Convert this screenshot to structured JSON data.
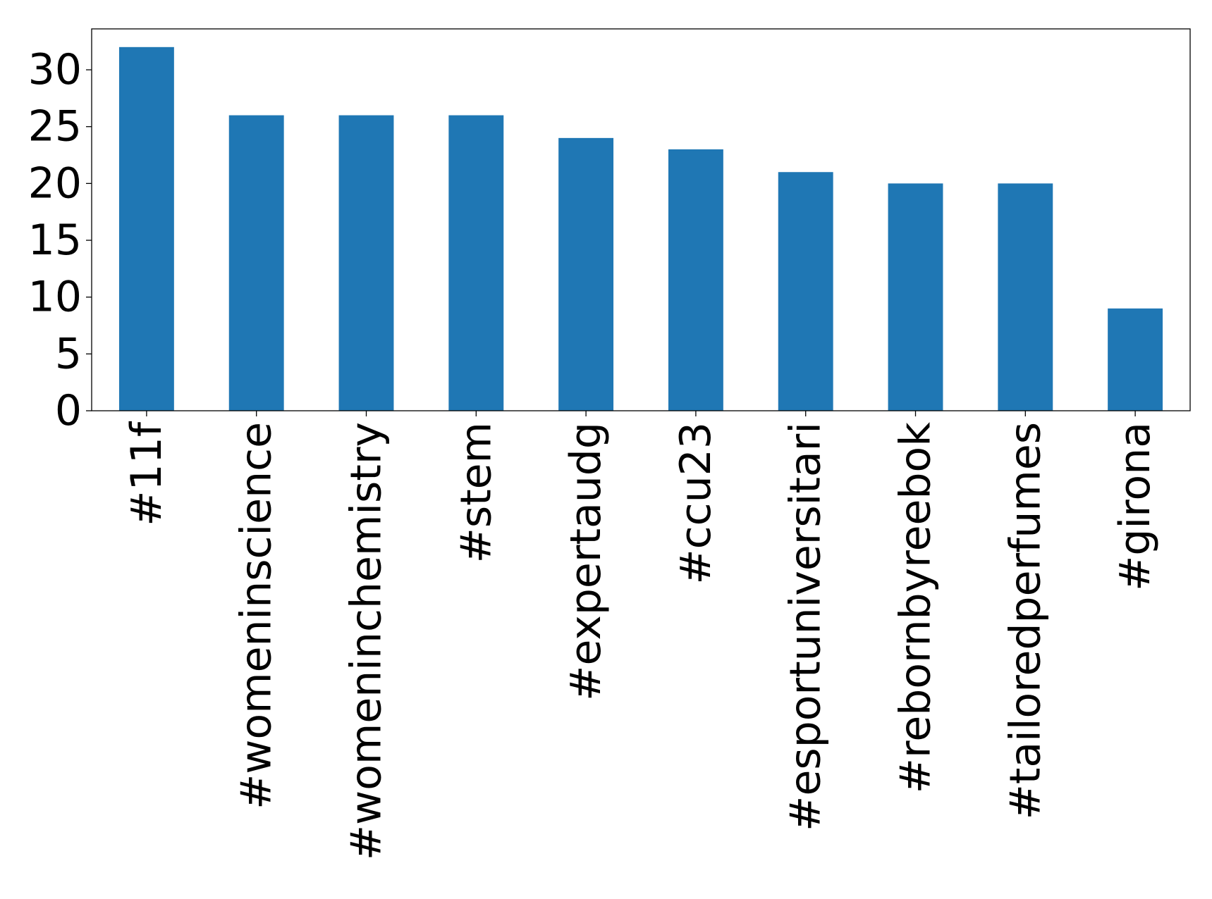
{
  "chart_data": {
    "type": "bar",
    "title": "",
    "xlabel": "",
    "ylabel": "",
    "categories": [
      "#11f",
      "#womeninscience",
      "#womeninchemistry",
      "#stem",
      "#expertaudg",
      "#ccu23",
      "#esportuniversitari",
      "#rebornbyreebok",
      "#tailoredperfumes",
      "#girona"
    ],
    "values": [
      32,
      26,
      26,
      26,
      24,
      23,
      21,
      20,
      20,
      9
    ],
    "yticks": [
      0,
      5,
      10,
      15,
      20,
      25,
      30
    ],
    "ylim": [
      0,
      33.6
    ],
    "grid": false,
    "legend": "none",
    "bar_color": "#1f77b4"
  }
}
